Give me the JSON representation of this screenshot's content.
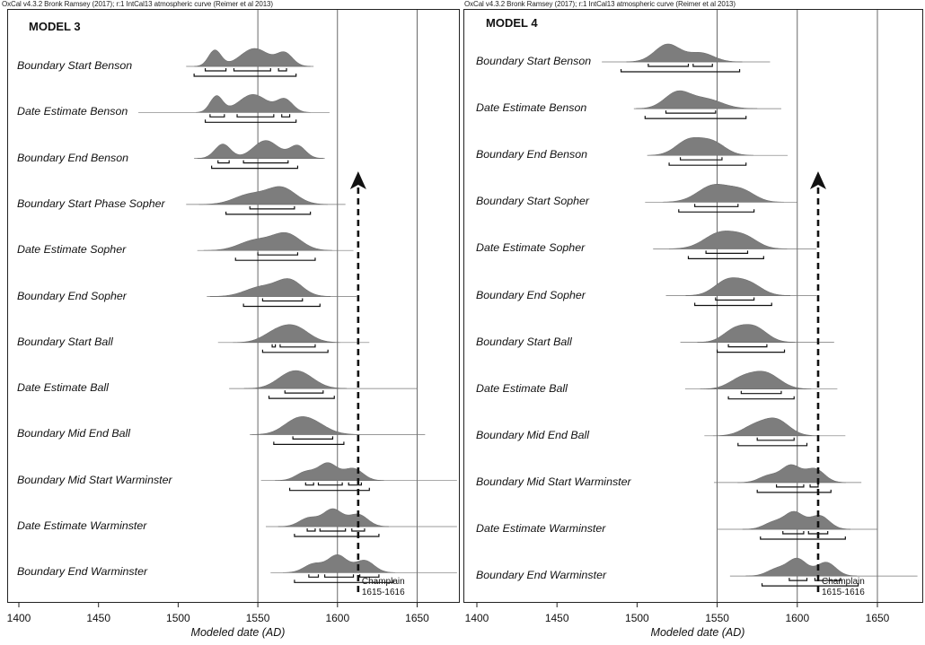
{
  "header_left": "OxCal v4.3.2 Bronk Ramsey (2017); r:1 IntCal13 atmospheric curve (Reimer et al 2013)",
  "header_right": "OxCal v4.3.2 Bronk Ramsey (2017); r:1 IntCal13 atmospheric curve (Reimer et al 2013)",
  "annotation": {
    "line1": "Champlain",
    "line2": "1615-1616",
    "year": 1613
  },
  "chart_data": [
    {
      "type": "density-ridgeline",
      "title": "MODEL 3",
      "xlabel": "Modeled date (AD)",
      "xlim": [
        1395,
        1675
      ],
      "ticks": [
        1400,
        1450,
        1500,
        1550,
        1600,
        1650
      ],
      "gridlines": [
        1550,
        1600,
        1650
      ],
      "rows": [
        {
          "label": "Boundary Start Benson",
          "tail": [
            1505,
            1585
          ],
          "peaks": [
            [
              1523,
              0.9,
              4
            ],
            [
              1548,
              1.0,
              9
            ],
            [
              1567,
              0.7,
              5
            ]
          ],
          "ranges": [
            [
              1517,
              1530
            ],
            [
              1535,
              1558
            ],
            [
              1563,
              1568
            ]
          ],
          "range95": [
            1510,
            1574
          ]
        },
        {
          "label": "Date Estimate Benson",
          "tail": [
            1475,
            1595
          ],
          "peaks": [
            [
              1524,
              0.9,
              4
            ],
            [
              1547,
              1.0,
              9
            ],
            [
              1567,
              0.7,
              5
            ]
          ],
          "ranges": [
            [
              1520,
              1529
            ],
            [
              1537,
              1560
            ],
            [
              1565,
              1570
            ]
          ],
          "range95": [
            1517,
            1574
          ]
        },
        {
          "label": "Boundary End Benson",
          "tail": [
            1510,
            1592
          ],
          "peaks": [
            [
              1528,
              0.8,
              5
            ],
            [
              1555,
              1.0,
              8
            ],
            [
              1575,
              0.7,
              5
            ]
          ],
          "ranges": [
            [
              1525,
              1532
            ],
            [
              1541,
              1569
            ]
          ],
          "range95": [
            1521,
            1575
          ]
        },
        {
          "label": "Boundary Start Phase Sopher",
          "tail": [
            1505,
            1605
          ],
          "peaks": [
            [
              1545,
              0.6,
              10
            ],
            [
              1565,
              1.0,
              9
            ]
          ],
          "ranges": [
            [
              1545,
              1573
            ]
          ],
          "range95": [
            1530,
            1583
          ]
        },
        {
          "label": "Date Estimate Sopher",
          "tail": [
            1512,
            1610
          ],
          "peaks": [
            [
              1548,
              0.6,
              10
            ],
            [
              1568,
              1.0,
              9
            ]
          ],
          "ranges": [
            [
              1550,
              1575
            ]
          ],
          "range95": [
            1536,
            1586
          ]
        },
        {
          "label": "Boundary End Sopher",
          "tail": [
            1518,
            1612
          ],
          "peaks": [
            [
              1552,
              0.6,
              10
            ],
            [
              1570,
              1.0,
              8
            ]
          ],
          "ranges": [
            [
              1553,
              1578
            ]
          ],
          "range95": [
            1541,
            1589
          ]
        },
        {
          "label": "Boundary Start Ball",
          "tail": [
            1525,
            1620
          ],
          "peaks": [
            [
              1560,
              0.5,
              8
            ],
            [
              1573,
              1.0,
              9
            ]
          ],
          "ranges": [
            [
              1559,
              1561
            ],
            [
              1564,
              1586
            ]
          ],
          "range95": [
            1553,
            1594
          ]
        },
        {
          "label": "Date Estimate Ball",
          "tail": [
            1532,
            1650
          ],
          "peaks": [
            [
              1567,
              0.5,
              8
            ],
            [
              1577,
              1.0,
              9
            ]
          ],
          "ranges": [
            [
              1567,
              1591
            ]
          ],
          "range95": [
            1557,
            1598
          ]
        },
        {
          "label": "Boundary Mid End Ball",
          "tail": [
            1545,
            1655
          ],
          "peaks": [
            [
              1572,
              0.5,
              8
            ],
            [
              1582,
              1.0,
              10
            ]
          ],
          "ranges": [
            [
              1572,
              1597
            ]
          ],
          "range95": [
            1560,
            1604
          ]
        },
        {
          "label": "Boundary Mid Start Warminster",
          "tail": [
            1552,
            1675
          ],
          "peaks": [
            [
              1580,
              0.5,
              6
            ],
            [
              1594,
              1.0,
              6
            ],
            [
              1610,
              0.7,
              6
            ]
          ],
          "ranges": [
            [
              1580,
              1585
            ],
            [
              1588,
              1603
            ],
            [
              1607,
              1615
            ]
          ],
          "range95": [
            1570,
            1620
          ]
        },
        {
          "label": "Date Estimate Warminster",
          "tail": [
            1555,
            1675
          ],
          "peaks": [
            [
              1582,
              0.5,
              6
            ],
            [
              1597,
              1.0,
              6
            ],
            [
              1613,
              0.7,
              6
            ]
          ],
          "ranges": [
            [
              1581,
              1586
            ],
            [
              1589,
              1605
            ],
            [
              1609,
              1617
            ]
          ],
          "range95": [
            1573,
            1626
          ]
        },
        {
          "label": "Boundary End Warminster",
          "tail": [
            1558,
            1675
          ],
          "peaks": [
            [
              1585,
              0.5,
              6
            ],
            [
              1600,
              1.0,
              6
            ],
            [
              1617,
              0.7,
              6
            ]
          ],
          "ranges": [
            [
              1582,
              1588
            ],
            [
              1592,
              1610
            ],
            [
              1614,
              1626
            ]
          ],
          "range95": [
            1573,
            1635
          ]
        }
      ]
    },
    {
      "type": "density-ridgeline",
      "title": "MODEL 4",
      "xlabel": "Modeled date (AD)",
      "xlim": [
        1395,
        1675
      ],
      "ticks": [
        1400,
        1450,
        1500,
        1550,
        1600,
        1650
      ],
      "gridlines": [
        1550,
        1600,
        1650
      ],
      "rows": [
        {
          "label": "Boundary Start Benson",
          "tail": [
            1478,
            1583
          ],
          "peaks": [
            [
              1519,
              1.0,
              8
            ],
            [
              1540,
              0.5,
              8
            ]
          ],
          "ranges": [
            [
              1507,
              1532
            ],
            [
              1535,
              1547
            ]
          ],
          "range95": [
            1490,
            1564
          ]
        },
        {
          "label": "Date Estimate Benson",
          "tail": [
            1498,
            1590
          ],
          "peaks": [
            [
              1525,
              1.0,
              8
            ],
            [
              1543,
              0.6,
              10
            ]
          ],
          "ranges": [
            [
              1518,
              1549
            ]
          ],
          "range95": [
            1505,
            1568
          ]
        },
        {
          "label": "Boundary End Benson",
          "tail": [
            1510,
            1594
          ],
          "peaks": [
            [
              1532,
              0.9,
              8
            ],
            [
              1547,
              0.8,
              8
            ]
          ],
          "ranges": [
            [
              1527,
              1553
            ]
          ],
          "range95": [
            1520,
            1568
          ]
        },
        {
          "label": "Boundary Start Sopher",
          "tail": [
            1505,
            1600
          ],
          "peaks": [
            [
              1548,
              1.0,
              10
            ],
            [
              1566,
              0.6,
              8
            ]
          ],
          "ranges": [
            [
              1536,
              1563
            ]
          ],
          "range95": [
            1526,
            1573
          ]
        },
        {
          "label": "Date Estimate Sopher",
          "tail": [
            1510,
            1612
          ],
          "peaks": [
            [
              1552,
              1.0,
              10
            ],
            [
              1568,
              0.6,
              8
            ]
          ],
          "ranges": [
            [
              1543,
              1569
            ]
          ],
          "range95": [
            1532,
            1579
          ]
        },
        {
          "label": "Boundary End Sopher",
          "tail": [
            1518,
            1612
          ],
          "peaks": [
            [
              1556,
              1.0,
              8
            ],
            [
              1570,
              0.8,
              8
            ]
          ],
          "ranges": [
            [
              1549,
              1573
            ]
          ],
          "range95": [
            1536,
            1584
          ]
        },
        {
          "label": "Boundary Start Ball",
          "tail": [
            1527,
            1623
          ],
          "peaks": [
            [
              1560,
              0.7,
              7
            ],
            [
              1573,
              1.0,
              8
            ]
          ],
          "ranges": [
            [
              1557,
              1581
            ]
          ],
          "range95": [
            1550,
            1592
          ]
        },
        {
          "label": "Date Estimate Ball",
          "tail": [
            1530,
            1625
          ],
          "peaks": [
            [
              1565,
              0.6,
              8
            ],
            [
              1580,
              1.0,
              9
            ]
          ],
          "ranges": [
            [
              1565,
              1590
            ]
          ],
          "range95": [
            1557,
            1598
          ]
        },
        {
          "label": "Boundary Mid End Ball",
          "tail": [
            1542,
            1630
          ],
          "peaks": [
            [
              1573,
              0.6,
              8
            ],
            [
              1587,
              1.0,
              8
            ]
          ],
          "ranges": [
            [
              1575,
              1598
            ]
          ],
          "range95": [
            1563,
            1606
          ]
        },
        {
          "label": "Boundary Mid Start Warminster",
          "tail": [
            1548,
            1640
          ],
          "peaks": [
            [
              1582,
              0.4,
              6
            ],
            [
              1596,
              1.0,
              6
            ],
            [
              1611,
              0.8,
              6
            ]
          ],
          "ranges": [
            [
              1587,
              1604
            ],
            [
              1608,
              1613
            ]
          ],
          "range95": [
            1575,
            1621
          ]
        },
        {
          "label": "Date Estimate Warminster",
          "tail": [
            1550,
            1650
          ],
          "peaks": [
            [
              1585,
              0.4,
              6
            ],
            [
              1598,
              1.0,
              6
            ],
            [
              1614,
              0.8,
              6
            ]
          ],
          "ranges": [
            [
              1591,
              1604
            ],
            [
              1607,
              1619
            ]
          ],
          "range95": [
            1577,
            1630
          ]
        },
        {
          "label": "Boundary End Warminster",
          "tail": [
            1558,
            1675
          ],
          "peaks": [
            [
              1587,
              0.4,
              6
            ],
            [
              1600,
              1.0,
              6
            ],
            [
              1618,
              0.8,
              6
            ]
          ],
          "ranges": [
            [
              1595,
              1606
            ],
            [
              1611,
              1627
            ]
          ],
          "range95": [
            1578,
            1638
          ]
        }
      ]
    }
  ]
}
